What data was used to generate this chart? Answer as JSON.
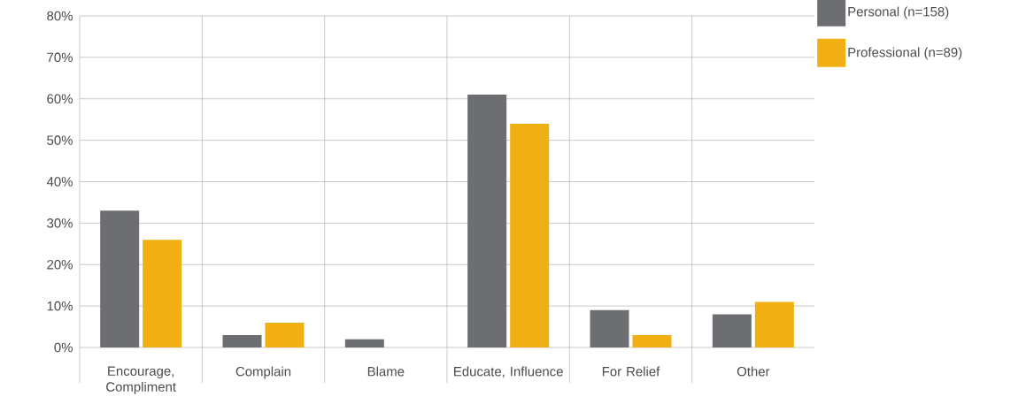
{
  "chart_data": {
    "type": "bar",
    "categories": [
      "Encourage, Compliment",
      "Complain",
      "Blame",
      "Educate, Influence",
      "For Relief",
      "Other"
    ],
    "series": [
      {
        "name": "Personal (n=158)",
        "color": "#6d6e71",
        "values": [
          33,
          3,
          2,
          61,
          9,
          8
        ]
      },
      {
        "name": "Professional (n=89)",
        "color": "#f0b013",
        "values": [
          26,
          6,
          0,
          54,
          3,
          11
        ]
      }
    ],
    "ylim": [
      0,
      80
    ],
    "yticks": [
      {
        "value": 0,
        "label": "0%"
      },
      {
        "value": 10,
        "label": "10%"
      },
      {
        "value": 20,
        "label": "20%"
      },
      {
        "value": 30,
        "label": "30%"
      },
      {
        "value": 40,
        "label": "40%"
      },
      {
        "value": 50,
        "label": "50%"
      },
      {
        "value": 60,
        "label": "60%"
      },
      {
        "value": 70,
        "label": "70%"
      },
      {
        "value": 80,
        "label": "80%"
      }
    ],
    "grid": true,
    "legend": "top right"
  }
}
